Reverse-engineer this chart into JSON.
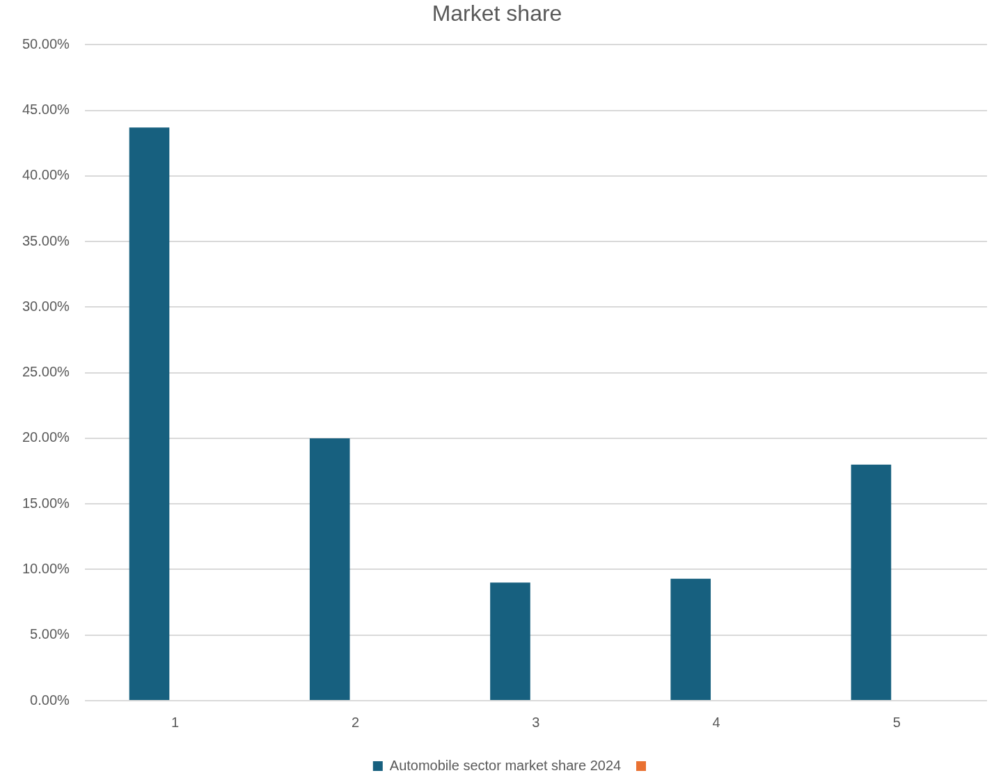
{
  "chart_data": {
    "type": "bar",
    "title": "Market share",
    "categories": [
      "1",
      "2",
      "3",
      "4",
      "5"
    ],
    "series": [
      {
        "name": "Automobile sector market share 2024",
        "color": "#17607f",
        "values": [
          43.7,
          20.0,
          9.0,
          9.3,
          18.0
        ]
      },
      {
        "color": "#e97132",
        "values": [
          null,
          null,
          null,
          null,
          null
        ]
      }
    ],
    "ylim": [
      0,
      50
    ],
    "yticks": [
      {
        "value": 0,
        "label": "0.00%"
      },
      {
        "value": 5,
        "label": "5.00%"
      },
      {
        "value": 10,
        "label": "10.00%"
      },
      {
        "value": 15,
        "label": "15.00%"
      },
      {
        "value": 20,
        "label": "20.00%"
      },
      {
        "value": 25,
        "label": "25.00%"
      },
      {
        "value": 30,
        "label": "30.00%"
      },
      {
        "value": 35,
        "label": "35.00%"
      },
      {
        "value": 40,
        "label": "40.00%"
      },
      {
        "value": 45,
        "label": "45.00%"
      },
      {
        "value": 50,
        "label": "50.00%"
      }
    ],
    "grid": "y",
    "legend": "bottom"
  }
}
